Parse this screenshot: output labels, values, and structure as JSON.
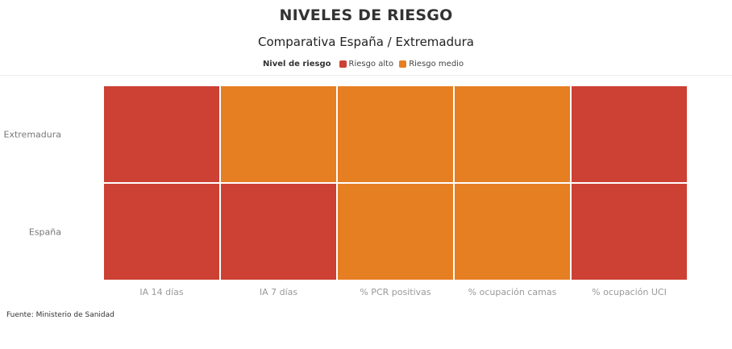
{
  "header": {
    "title": "NIVELES DE RIESGO",
    "subtitle": "Comparativa España / Extremadura"
  },
  "legend": {
    "title": "Nivel de riesgo",
    "entries": [
      {
        "label": "Riesgo alto",
        "color": "#cc4133"
      },
      {
        "label": "Riesgo medio",
        "color": "#e67e22"
      }
    ]
  },
  "chart_data": {
    "type": "heatmap",
    "title": "NIVELES DE RIESGO",
    "subtitle": "Comparativa España / Extremadura",
    "x_categories": [
      "IA 14 días",
      "IA 7 días",
      "% PCR positivas",
      "% ocupación camas",
      "% ocupación UCI"
    ],
    "y_categories": [
      "Extremadura",
      "España"
    ],
    "values": [
      [
        "Riesgo alto",
        "Riesgo medio",
        "Riesgo medio",
        "Riesgo medio",
        "Riesgo alto"
      ],
      [
        "Riesgo alto",
        "Riesgo alto",
        "Riesgo medio",
        "Riesgo medio",
        "Riesgo alto"
      ]
    ],
    "colors": {
      "Riesgo alto": "#cc4133",
      "Riesgo medio": "#e67e22"
    },
    "legend_position": "top-center"
  },
  "footer": {
    "source": "Fuente: Ministerio de Sanidad"
  }
}
